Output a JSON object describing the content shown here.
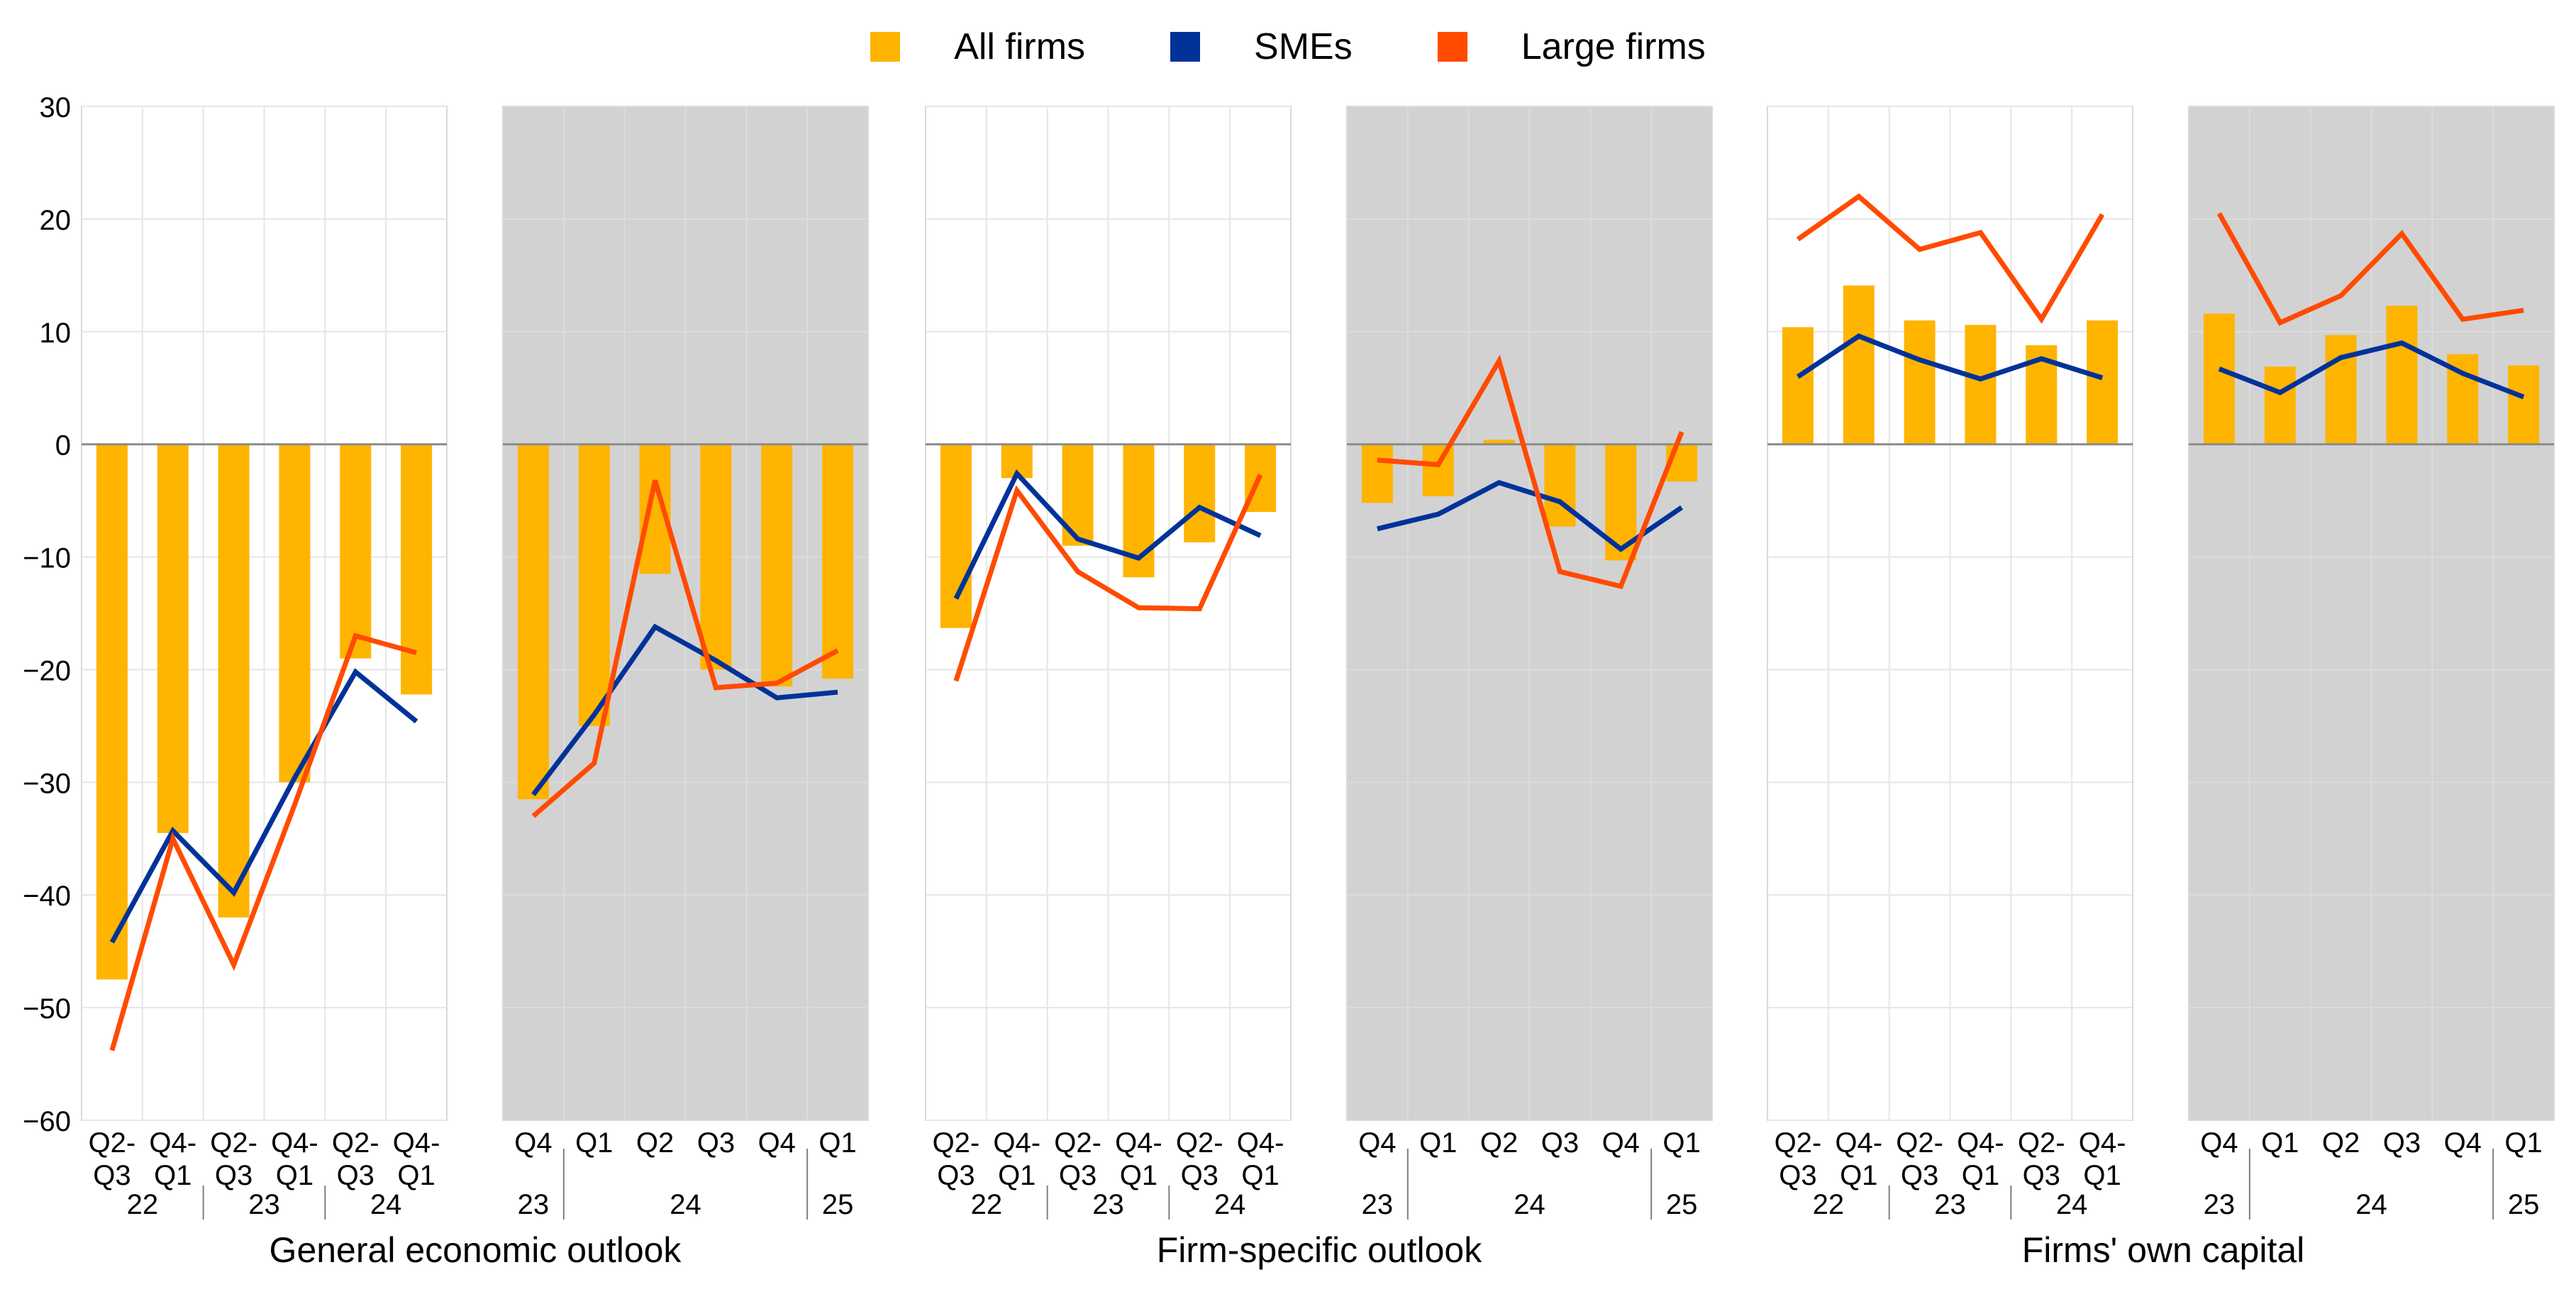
{
  "legend": {
    "items": [
      {
        "label": "All firms",
        "color": "#FFB400"
      },
      {
        "label": "SMEs",
        "color": "#003299"
      },
      {
        "label": "Large firms",
        "color": "#FF4B00"
      }
    ]
  },
  "chart_data": {
    "type": "bar",
    "title": "",
    "ylim": [
      -60,
      30
    ],
    "yticks": [
      "30",
      "20",
      "10",
      "0",
      "−10",
      "−20",
      "−30",
      "−40",
      "−50",
      "−60"
    ],
    "ytick_values": [
      30,
      20,
      10,
      0,
      -10,
      -20,
      -30,
      -40,
      -50,
      -60
    ],
    "grid": true,
    "legend_position": "top-center",
    "groups": [
      {
        "title": "General economic outlook",
        "panels": [
          {
            "shaded": false,
            "categories": [
              [
                "Q2-",
                "Q3"
              ],
              [
                "Q4-",
                "Q1"
              ],
              [
                "Q2-",
                "Q3"
              ],
              [
                "Q4-",
                "Q1"
              ],
              [
                "Q2-",
                "Q3"
              ],
              [
                "Q4-",
                "Q1"
              ]
            ],
            "year_labels": [
              {
                "label": "22",
                "at": 0.5,
                "sep": 1.5
              },
              {
                "label": "23",
                "at": 2.5,
                "sep": 3.5
              },
              {
                "label": "24",
                "at": 4.5,
                "sep": null
              }
            ],
            "series": [
              {
                "name": "All firms",
                "kind": "bar",
                "values": [
                  -47.5,
                  -34.5,
                  -42,
                  -30,
                  -19,
                  -22.2
                ]
              },
              {
                "name": "SMEs",
                "kind": "line",
                "values": [
                  -44.2,
                  -34.3,
                  -39.8,
                  -29.6,
                  -20.2,
                  -24.6
                ]
              },
              {
                "name": "Large firms",
                "kind": "line",
                "values": [
                  -53.8,
                  -35,
                  -46.2,
                  -32,
                  -17,
                  -18.5
                ]
              }
            ]
          },
          {
            "shaded": true,
            "categories": [
              [
                "Q4"
              ],
              [
                "Q1"
              ],
              [
                "Q2"
              ],
              [
                "Q3"
              ],
              [
                "Q4"
              ],
              [
                "Q1"
              ]
            ],
            "year_labels": [
              {
                "label": "23",
                "at": 0,
                "sep": 0.5
              },
              {
                "label": "24",
                "at": 2.5,
                "sep": 4.5
              },
              {
                "label": "25",
                "at": 5,
                "sep": null
              }
            ],
            "series": [
              {
                "name": "All firms",
                "kind": "bar",
                "values": [
                  -31.5,
                  -25,
                  -11.5,
                  -20,
                  -21.5,
                  -20.8
                ]
              },
              {
                "name": "SMEs",
                "kind": "line",
                "values": [
                  -31.1,
                  -24,
                  -16.2,
                  -19.2,
                  -22.5,
                  -22
                ]
              },
              {
                "name": "Large firms",
                "kind": "line",
                "values": [
                  -33,
                  -28.3,
                  -3.2,
                  -21.6,
                  -21.2,
                  -18.3
                ]
              }
            ]
          }
        ]
      },
      {
        "title": "Firm-specific outlook",
        "panels": [
          {
            "shaded": false,
            "categories": [
              [
                "Q2-",
                "Q3"
              ],
              [
                "Q4-",
                "Q1"
              ],
              [
                "Q2-",
                "Q3"
              ],
              [
                "Q4-",
                "Q1"
              ],
              [
                "Q2-",
                "Q3"
              ],
              [
                "Q4-",
                "Q1"
              ]
            ],
            "year_labels": [
              {
                "label": "22",
                "at": 0.5,
                "sep": 1.5
              },
              {
                "label": "23",
                "at": 2.5,
                "sep": 3.5
              },
              {
                "label": "24",
                "at": 4.5,
                "sep": null
              }
            ],
            "series": [
              {
                "name": "All firms",
                "kind": "bar",
                "values": [
                  -16.3,
                  -3,
                  -9,
                  -11.8,
                  -8.7,
                  -6
                ]
              },
              {
                "name": "SMEs",
                "kind": "line",
                "values": [
                  -13.7,
                  -2.6,
                  -8.4,
                  -10.1,
                  -5.6,
                  -8.1
                ]
              },
              {
                "name": "Large firms",
                "kind": "line",
                "values": [
                  -21,
                  -4.1,
                  -11.3,
                  -14.5,
                  -14.6,
                  -2.7
                ]
              }
            ]
          },
          {
            "shaded": true,
            "categories": [
              [
                "Q4"
              ],
              [
                "Q1"
              ],
              [
                "Q2"
              ],
              [
                "Q3"
              ],
              [
                "Q4"
              ],
              [
                "Q1"
              ]
            ],
            "year_labels": [
              {
                "label": "23",
                "at": 0,
                "sep": 0.5
              },
              {
                "label": "24",
                "at": 2.5,
                "sep": 4.5
              },
              {
                "label": "25",
                "at": 5,
                "sep": null
              }
            ],
            "series": [
              {
                "name": "All firms",
                "kind": "bar",
                "values": [
                  -5.2,
                  -4.6,
                  0.4,
                  -7.3,
                  -10.3,
                  -3.3
                ]
              },
              {
                "name": "SMEs",
                "kind": "line",
                "values": [
                  -7.5,
                  -6.2,
                  -3.4,
                  -5.1,
                  -9.3,
                  -5.6
                ]
              },
              {
                "name": "Large firms",
                "kind": "line",
                "values": [
                  -1.4,
                  -1.8,
                  7.4,
                  -11.3,
                  -12.6,
                  1.1
                ]
              }
            ]
          }
        ]
      },
      {
        "title": "Firms' own capital",
        "panels": [
          {
            "shaded": false,
            "categories": [
              [
                "Q2-",
                "Q3"
              ],
              [
                "Q4-",
                "Q1"
              ],
              [
                "Q2-",
                "Q3"
              ],
              [
                "Q4-",
                "Q1"
              ],
              [
                "Q2-",
                "Q3"
              ],
              [
                "Q4-",
                "Q1"
              ]
            ],
            "year_labels": [
              {
                "label": "22",
                "at": 0.5,
                "sep": 1.5
              },
              {
                "label": "23",
                "at": 2.5,
                "sep": 3.5
              },
              {
                "label": "24",
                "at": 4.5,
                "sep": null
              }
            ],
            "series": [
              {
                "name": "All firms",
                "kind": "bar",
                "values": [
                  10.4,
                  14.1,
                  11,
                  10.6,
                  8.8,
                  11
                ]
              },
              {
                "name": "SMEs",
                "kind": "line",
                "values": [
                  6,
                  9.6,
                  7.5,
                  5.8,
                  7.6,
                  5.9
                ]
              },
              {
                "name": "Large firms",
                "kind": "line",
                "values": [
                  18.2,
                  22,
                  17.3,
                  18.8,
                  11.1,
                  20.4
                ]
              }
            ]
          },
          {
            "shaded": true,
            "categories": [
              [
                "Q4"
              ],
              [
                "Q1"
              ],
              [
                "Q2"
              ],
              [
                "Q3"
              ],
              [
                "Q4"
              ],
              [
                "Q1"
              ]
            ],
            "year_labels": [
              {
                "label": "23",
                "at": 0,
                "sep": 0.5
              },
              {
                "label": "24",
                "at": 2.5,
                "sep": 4.5
              },
              {
                "label": "25",
                "at": 5,
                "sep": null
              }
            ],
            "series": [
              {
                "name": "All firms",
                "kind": "bar",
                "values": [
                  11.6,
                  6.9,
                  9.7,
                  12.3,
                  8,
                  7
                ]
              },
              {
                "name": "SMEs",
                "kind": "line",
                "values": [
                  6.7,
                  4.6,
                  7.7,
                  9,
                  6.3,
                  4.2
                ]
              },
              {
                "name": "Large firms",
                "kind": "line",
                "values": [
                  20.5,
                  10.8,
                  13.2,
                  18.7,
                  11.1,
                  11.9
                ]
              }
            ]
          }
        ]
      }
    ]
  }
}
